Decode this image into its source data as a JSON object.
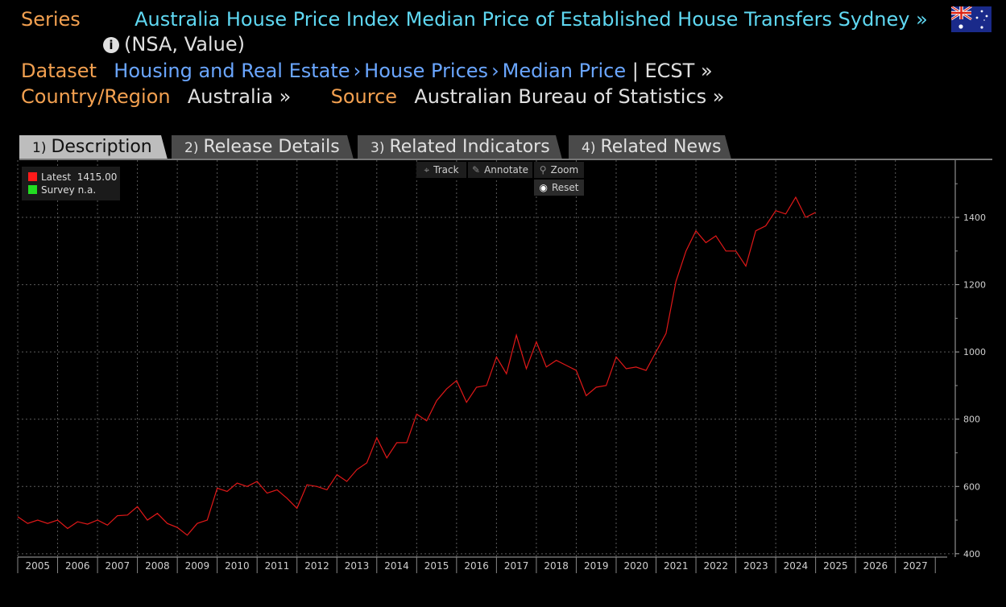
{
  "header": {
    "series_label": "Series",
    "series_title": "Australia House Price Index Median Price of Established House Transfers Sydney »",
    "series_sub": "(NSA, Value)",
    "dataset_label": "Dataset",
    "dataset_path": [
      "Housing and Real Estate",
      "House Prices",
      "Median Price"
    ],
    "dataset_code": "| ECST »",
    "country_label": "Country/Region",
    "country_value": "Australia »",
    "source_label": "Source",
    "source_value": "Australian Bureau of Statistics »"
  },
  "tabs": [
    {
      "num": "1)",
      "label": "Description",
      "active": true
    },
    {
      "num": "2)",
      "label": "Release Details",
      "active": false
    },
    {
      "num": "3)",
      "label": "Related Indicators",
      "active": false
    },
    {
      "num": "4)",
      "label": "Related News",
      "active": false
    }
  ],
  "legend": {
    "latest_label": "Latest",
    "latest_value": "1415.00",
    "latest_color": "#ff1a1a",
    "survey_label": "Survey",
    "survey_value": "n.a.",
    "survey_color": "#22dd22"
  },
  "controls": {
    "track": "Track",
    "annotate": "Annotate",
    "zoom": "Zoom",
    "reset": "Reset"
  },
  "chart_data": {
    "type": "line",
    "color": "#e01818",
    "ylim": [
      390,
      1570
    ],
    "xlim": [
      2004.5,
      2028.0
    ],
    "y_ticks": [
      400,
      600,
      800,
      1000,
      1200,
      1400
    ],
    "x_ticks": [
      2005,
      2006,
      2007,
      2008,
      2009,
      2010,
      2011,
      2012,
      2013,
      2014,
      2015,
      2016,
      2017,
      2018,
      2019,
      2020,
      2021,
      2022,
      2023,
      2024,
      2025,
      2026,
      2027
    ],
    "grid": true,
    "x": [
      2004.5,
      2004.75,
      2005,
      2005.25,
      2005.5,
      2005.75,
      2006,
      2006.25,
      2006.5,
      2006.75,
      2007,
      2007.25,
      2007.5,
      2007.75,
      2008,
      2008.25,
      2008.5,
      2008.75,
      2009,
      2009.25,
      2009.5,
      2009.75,
      2010,
      2010.25,
      2010.5,
      2010.75,
      2011,
      2011.25,
      2011.5,
      2011.75,
      2012,
      2012.25,
      2012.5,
      2012.75,
      2013,
      2013.25,
      2013.5,
      2013.75,
      2014,
      2014.25,
      2014.5,
      2014.75,
      2015,
      2015.25,
      2015.5,
      2015.75,
      2016,
      2016.25,
      2016.5,
      2016.75,
      2017,
      2017.25,
      2017.5,
      2017.75,
      2018,
      2018.25,
      2018.5,
      2018.75,
      2019,
      2019.25,
      2019.5,
      2019.75,
      2020,
      2020.25,
      2020.5,
      2020.75,
      2021,
      2021.25,
      2021.5,
      2021.75,
      2022,
      2022.25,
      2022.5,
      2022.75,
      2023,
      2023.25,
      2023.5,
      2023.75,
      2024,
      2024.25,
      2024.5
    ],
    "y": [
      510,
      490,
      500,
      490,
      500,
      475,
      495,
      488,
      500,
      485,
      513,
      515,
      540,
      500,
      520,
      490,
      478,
      455,
      490,
      500,
      595,
      585,
      610,
      600,
      615,
      580,
      590,
      565,
      535,
      605,
      600,
      590,
      635,
      615,
      650,
      670,
      745,
      685,
      730,
      730,
      815,
      795,
      855,
      890,
      915,
      850,
      895,
      900,
      985,
      935,
      1050,
      950,
      1030,
      955,
      975,
      960,
      945,
      870,
      895,
      900,
      985,
      950,
      955,
      945,
      1000,
      1055,
      1210,
      1300,
      1360,
      1325,
      1345,
      1300,
      1300,
      1255,
      1360,
      1375,
      1420,
      1410,
      1460,
      1400,
      1415
    ]
  }
}
